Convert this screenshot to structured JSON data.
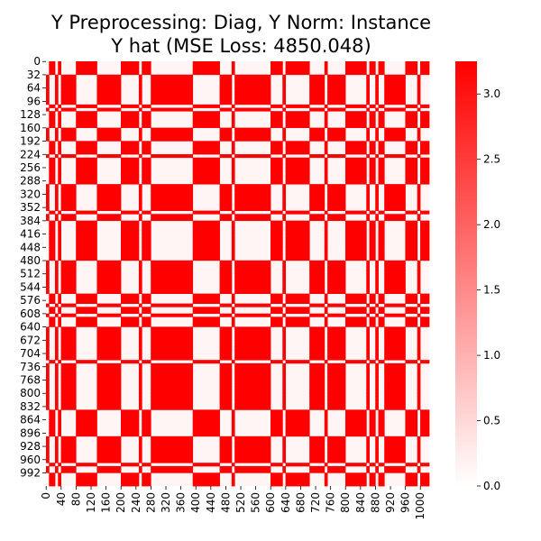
{
  "chart_data": {
    "type": "heatmap",
    "title_line1": "Y Preprocessing: Diag, Y Norm: Instance",
    "title_line2": "Y hat (MSE Loss: 4850.048)",
    "xlabel": "",
    "ylabel": "",
    "n": 1024,
    "x_ticks": [
      0,
      40,
      80,
      120,
      160,
      200,
      240,
      280,
      320,
      360,
      400,
      440,
      480,
      520,
      560,
      600,
      640,
      680,
      720,
      760,
      800,
      840,
      880,
      920,
      960,
      1000
    ],
    "y_ticks": [
      0,
      32,
      64,
      96,
      128,
      160,
      192,
      224,
      256,
      288,
      320,
      352,
      384,
      416,
      448,
      480,
      512,
      544,
      576,
      608,
      640,
      672,
      704,
      736,
      768,
      800,
      832,
      864,
      896,
      928,
      960,
      992
    ],
    "colorbar": {
      "min": 0.0,
      "max": 3.25,
      "ticks": [
        "0.0",
        "0.5",
        "1.0",
        "1.5",
        "2.0",
        "2.5",
        "3.0"
      ],
      "low_color": "#ffffff",
      "high_color": "#ff0000"
    },
    "value_levels": [
      0.0,
      3.25
    ],
    "pattern": "block-structured binary matrix: red (high ~3.2) and near-white (low ~0) bands along rows and columns",
    "row_bands_red": [
      [
        0,
        30
      ],
      [
        100,
        160
      ],
      [
        190,
        290
      ],
      [
        380,
        470
      ],
      [
        560,
        640
      ],
      [
        830,
        900
      ],
      [
        990,
        1024
      ]
    ],
    "col_bands_red": [
      [
        0,
        40
      ],
      [
        80,
        140
      ],
      [
        200,
        280
      ],
      [
        380,
        460
      ],
      [
        600,
        700
      ],
      [
        800,
        900
      ],
      [
        960,
        1024
      ]
    ]
  }
}
